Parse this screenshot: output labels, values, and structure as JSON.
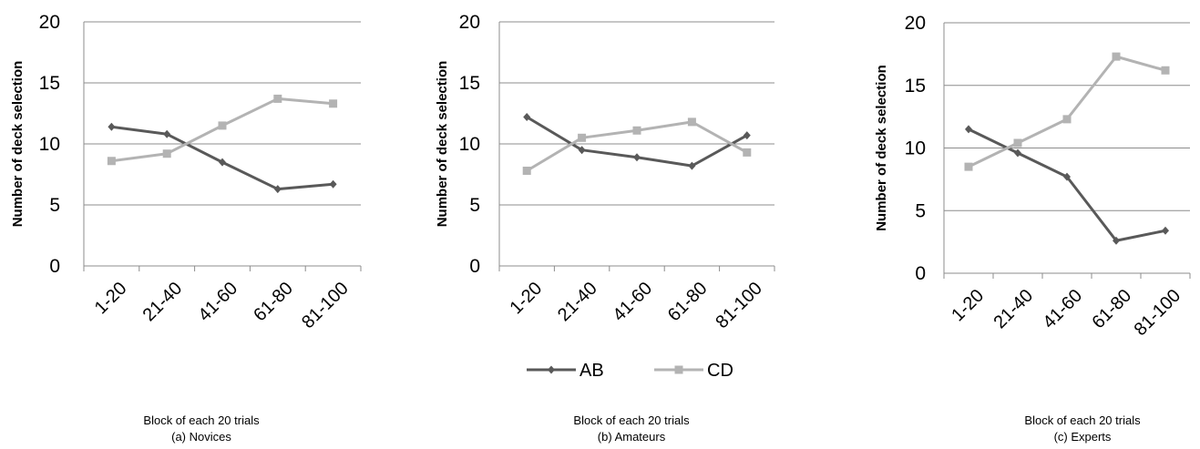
{
  "chart_data": [
    {
      "type": "line",
      "ylabel": "Number of deck selection",
      "xlabel": "Block of each 20 trials",
      "caption": "(a) Novices",
      "ylim": [
        0,
        20
      ],
      "yticks": [
        "0",
        "5",
        "10",
        "15",
        "20"
      ],
      "categories": [
        "1-20",
        "21-40",
        "41-60",
        "61-80",
        "81-100"
      ],
      "series": [
        {
          "name": "AB",
          "color": "#595959",
          "marker": "diamond",
          "values": [
            11.4,
            10.8,
            8.5,
            6.3,
            6.7
          ]
        },
        {
          "name": "CD",
          "color": "#b3b3b3",
          "marker": "square",
          "values": [
            8.6,
            9.2,
            11.5,
            13.7,
            13.3
          ]
        }
      ],
      "grid": "horizontal"
    },
    {
      "type": "line",
      "ylabel": "Number of deck selection",
      "xlabel": "Block of each 20 trials",
      "caption": "(b) Amateurs",
      "ylim": [
        0,
        20
      ],
      "yticks": [
        "0",
        "5",
        "10",
        "15",
        "20"
      ],
      "categories": [
        "1-20",
        "21-40",
        "41-60",
        "61-80",
        "81-100"
      ],
      "series": [
        {
          "name": "AB",
          "color": "#595959",
          "marker": "diamond",
          "values": [
            12.2,
            9.5,
            8.9,
            8.2,
            10.7
          ]
        },
        {
          "name": "CD",
          "color": "#b3b3b3",
          "marker": "square",
          "values": [
            7.8,
            10.5,
            11.1,
            11.8,
            9.3
          ]
        }
      ],
      "grid": "horizontal",
      "legend": "bottom"
    },
    {
      "type": "line",
      "ylabel": "Number of deck selection",
      "xlabel": "Block of each 20 trials",
      "caption": "(c) Experts",
      "ylim": [
        0,
        20
      ],
      "yticks": [
        "0",
        "5",
        "10",
        "15",
        "20"
      ],
      "categories": [
        "1-20",
        "21-40",
        "41-60",
        "61-80",
        "81-100"
      ],
      "series": [
        {
          "name": "AB",
          "color": "#595959",
          "marker": "diamond",
          "values": [
            11.5,
            9.6,
            7.7,
            2.6,
            3.4
          ]
        },
        {
          "name": "CD",
          "color": "#b3b3b3",
          "marker": "square",
          "values": [
            8.5,
            10.4,
            12.3,
            17.3,
            16.2
          ]
        }
      ],
      "grid": "horizontal"
    }
  ]
}
